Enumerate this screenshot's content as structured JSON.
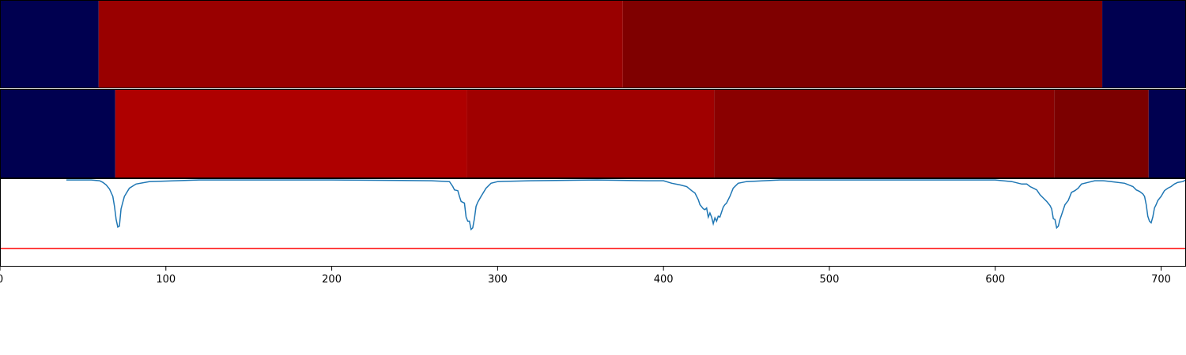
{
  "chart_data": [
    {
      "type": "heatmap",
      "colors": {
        "background": "#000050",
        "segment_a": "#990000",
        "segment_b": "#7f0000"
      },
      "segments": [
        {
          "x_start": 0,
          "x_end": 59.5,
          "color": "#000050"
        },
        {
          "x_start": 59.5,
          "x_end": 375.5,
          "color": "#990000"
        },
        {
          "x_start": 375.5,
          "x_end": 664.5,
          "color": "#7f0000"
        },
        {
          "x_start": 664.5,
          "x_end": 715,
          "color": "#000050"
        }
      ]
    },
    {
      "type": "heatmap",
      "segments": [
        {
          "x_start": 0,
          "x_end": 69.5,
          "color": "#000050"
        },
        {
          "x_start": 69.5,
          "x_end": 281.5,
          "color": "#ae0000"
        },
        {
          "x_start": 281.5,
          "x_end": 430.5,
          "color": "#a00000"
        },
        {
          "x_start": 430.5,
          "x_end": 635.5,
          "color": "#8a0000"
        },
        {
          "x_start": 635.5,
          "x_end": 692.5,
          "color": "#7c0000"
        },
        {
          "x_start": 692.5,
          "x_end": 715,
          "color": "#000050"
        }
      ]
    },
    {
      "type": "line",
      "xlim": [
        0,
        715
      ],
      "ylim": [
        -1.05,
        0.02
      ],
      "x_ticks": [
        0,
        100,
        200,
        300,
        400,
        500,
        600,
        700
      ],
      "tick_labels": [
        "0",
        "100",
        "200",
        "300",
        "400",
        "500",
        "600",
        "700"
      ],
      "series": [
        {
          "color": "#1f77b4",
          "x": [
            40,
            55,
            60,
            62,
            64,
            66,
            68,
            69,
            70,
            71,
            72,
            73,
            75,
            78,
            82,
            90,
            120,
            200,
            260,
            271,
            273,
            274,
            276,
            277,
            278,
            279,
            280,
            281,
            282,
            283,
            284,
            285,
            286,
            287,
            288,
            290,
            293,
            296,
            300,
            320,
            360,
            390,
            400,
            405,
            410,
            414,
            417,
            419,
            421,
            422,
            424,
            425,
            426,
            427,
            428,
            429,
            430,
            431,
            432,
            433,
            434,
            436,
            437,
            438,
            440,
            442,
            445,
            450,
            470,
            520,
            580,
            600,
            610,
            616,
            619,
            621,
            623,
            625,
            627,
            629,
            631,
            633,
            634,
            635,
            636,
            637,
            638,
            639,
            640,
            642,
            644,
            646,
            648,
            650,
            652,
            656,
            660,
            665,
            670,
            678,
            683,
            685,
            687,
            689,
            690,
            691,
            692,
            693,
            694,
            695,
            696,
            697,
            698,
            700,
            702,
            704,
            706,
            708,
            710,
            713,
            715
          ],
          "y": [
            0,
            0,
            -0.01,
            -0.03,
            -0.06,
            -0.11,
            -0.2,
            -0.32,
            -0.48,
            -0.57,
            -0.56,
            -0.35,
            -0.2,
            -0.1,
            -0.05,
            -0.02,
            0,
            0,
            -0.01,
            -0.02,
            -0.08,
            -0.12,
            -0.13,
            -0.2,
            -0.26,
            -0.27,
            -0.28,
            -0.45,
            -0.5,
            -0.5,
            -0.6,
            -0.58,
            -0.47,
            -0.32,
            -0.27,
            -0.2,
            -0.1,
            -0.04,
            -0.02,
            -0.01,
            0,
            -0.01,
            -0.01,
            -0.04,
            -0.06,
            -0.08,
            -0.13,
            -0.16,
            -0.24,
            -0.3,
            -0.35,
            -0.36,
            -0.34,
            -0.45,
            -0.4,
            -0.45,
            -0.53,
            -0.46,
            -0.5,
            -0.44,
            -0.45,
            -0.33,
            -0.3,
            -0.28,
            -0.2,
            -0.1,
            -0.04,
            -0.02,
            0,
            0,
            0,
            0,
            -0.02,
            -0.05,
            -0.05,
            -0.08,
            -0.1,
            -0.12,
            -0.18,
            -0.22,
            -0.26,
            -0.31,
            -0.35,
            -0.47,
            -0.48,
            -0.58,
            -0.56,
            -0.48,
            -0.42,
            -0.3,
            -0.25,
            -0.15,
            -0.13,
            -0.1,
            -0.05,
            -0.03,
            -0.01,
            -0.01,
            -0.02,
            -0.04,
            -0.08,
            -0.12,
            -0.14,
            -0.17,
            -0.2,
            -0.3,
            -0.44,
            -0.5,
            -0.52,
            -0.45,
            -0.34,
            -0.3,
            -0.25,
            -0.2,
            -0.13,
            -0.1,
            -0.08,
            -0.05,
            -0.03,
            -0.02,
            0
          ]
        }
      ],
      "reference_line": {
        "y": -0.83,
        "color": "#ff0000"
      }
    }
  ]
}
